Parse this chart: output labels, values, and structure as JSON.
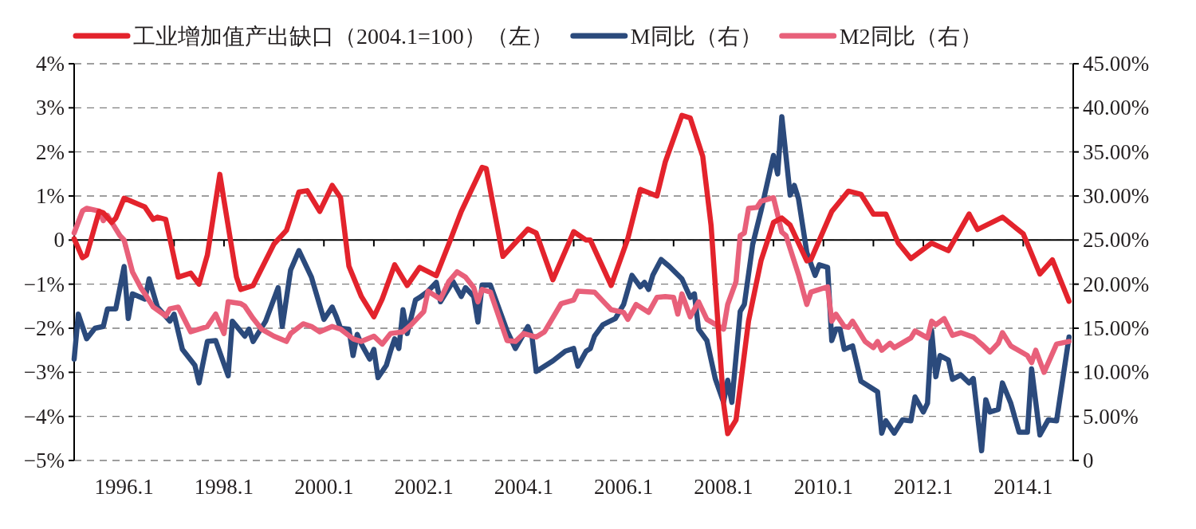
{
  "chart_data": {
    "type": "line",
    "legend": "top",
    "grid": "y",
    "line_style": "solid",
    "xlim": [
      "1995-01",
      "2015-01"
    ],
    "xticks": [
      {
        "value": "1996-01",
        "label": "1996.1"
      },
      {
        "value": "1997-01",
        "label": null
      },
      {
        "value": "1998-01",
        "label": "1998.1"
      },
      {
        "value": "1999-01",
        "label": null
      },
      {
        "value": "2000-01",
        "label": "2000.1"
      },
      {
        "value": "2001-01",
        "label": null
      },
      {
        "value": "2002-01",
        "label": "2002.1"
      },
      {
        "value": "2003-01",
        "label": null
      },
      {
        "value": "2004-01",
        "label": "2004.1"
      },
      {
        "value": "2005-01",
        "label": null
      },
      {
        "value": "2006-01",
        "label": "2006.1"
      },
      {
        "value": "2007-01",
        "label": null
      },
      {
        "value": "2008-01",
        "label": "2008.1"
      },
      {
        "value": "2009-01",
        "label": null
      },
      {
        "value": "2010-01",
        "label": "2010.1"
      },
      {
        "value": "2011-01",
        "label": null
      },
      {
        "value": "2012-01",
        "label": "2012.1"
      },
      {
        "value": "2013-01",
        "label": null
      },
      {
        "value": "2014-01",
        "label": "2014.1"
      }
    ],
    "ylim": [
      -5,
      4
    ],
    "yticks": [
      {
        "value": 4,
        "label": "4%"
      },
      {
        "value": 3,
        "label": "3%"
      },
      {
        "value": 2,
        "label": "2%"
      },
      {
        "value": 1,
        "label": "1%"
      },
      {
        "value": 0,
        "label": "0"
      },
      {
        "value": -1,
        "label": "−1%"
      },
      {
        "value": -2,
        "label": "−2%"
      },
      {
        "value": -3,
        "label": "−3%"
      },
      {
        "value": -4,
        "label": "−4%"
      },
      {
        "value": -5,
        "label": "−5%"
      }
    ],
    "y2lim": [
      0,
      45
    ],
    "y2ticks": [
      {
        "value": 45,
        "label": "45.00%"
      },
      {
        "value": 40,
        "label": "40.00%"
      },
      {
        "value": 35,
        "label": "35.00%"
      },
      {
        "value": 30,
        "label": "30.00%"
      },
      {
        "value": 25,
        "label": "25.00%"
      },
      {
        "value": 20,
        "label": "20.00%"
      },
      {
        "value": 15,
        "label": "15.00%"
      },
      {
        "value": 10,
        "label": "10.00%"
      },
      {
        "value": 5,
        "label": "5.00%"
      },
      {
        "value": 0,
        "label": "0"
      }
    ],
    "ref_lines": [
      {
        "axis": "y",
        "value": 0,
        "color": "#000000",
        "line_style": "solid"
      }
    ],
    "series": [
      {
        "name": "工业增加值产出缺口（2004.1=100）（左）",
        "color": "#e3232c",
        "x": [
          "1995-01",
          "1995-03",
          "1995-04",
          "1995-07",
          "1995-08",
          "1995-10",
          "1995-11",
          "1996-01",
          "1996-06",
          "1996-08",
          "1996-09",
          "1996-11",
          "1997-02",
          "1997-05",
          "1997-07",
          "1997-09",
          "1997-12",
          "1998-01",
          "1998-04",
          "1998-05",
          "1998-08",
          "1999-01",
          "1999-04",
          "1999-07",
          "1999-09",
          "1999-12",
          "2000-03",
          "2000-05",
          "2000-07",
          "2000-10",
          "2001-01",
          "2001-03",
          "2001-06",
          "2001-09",
          "2001-12",
          "2002-04",
          "2002-07",
          "2002-10",
          "2003-03",
          "2003-04",
          "2003-08",
          "2004-02",
          "2004-04",
          "2004-08",
          "2005-01",
          "2005-04",
          "2005-05",
          "2005-10",
          "2006-02",
          "2006-05",
          "2006-09",
          "2006-11",
          "2007-03",
          "2007-05",
          "2007-08",
          "2007-10",
          "2008-01",
          "2008-02",
          "2008-04",
          "2008-07",
          "2008-10",
          "2009-01",
          "2009-03",
          "2009-05",
          "2009-09",
          "2009-10",
          "2010-03",
          "2010-07",
          "2010-10",
          "2011-01",
          "2011-04",
          "2011-07",
          "2011-10",
          "2012-03",
          "2012-07",
          "2012-12",
          "2013-02",
          "2013-08",
          "2014-01",
          "2014-05",
          "2014-08",
          "2014-12"
        ],
        "values": [
          0.03,
          -0.4,
          -0.34,
          0.65,
          0.62,
          0.4,
          0.5,
          0.95,
          0.75,
          0.47,
          0.52,
          0.47,
          -0.84,
          -0.75,
          -1.0,
          -0.34,
          1.49,
          0.9,
          -0.84,
          -1.12,
          -1.03,
          -0.09,
          0.22,
          1.09,
          1.12,
          0.65,
          1.24,
          0.96,
          -0.59,
          -1.28,
          -1.74,
          -1.34,
          -0.56,
          -1.03,
          -0.62,
          -0.81,
          -0.09,
          0.65,
          1.65,
          1.62,
          -0.37,
          0.25,
          0.16,
          -0.9,
          0.19,
          0.0,
          0.0,
          -1.03,
          0.03,
          1.15,
          1.0,
          1.77,
          2.83,
          2.77,
          1.9,
          0.34,
          -3.7,
          -4.39,
          -4.08,
          -1.84,
          -0.47,
          0.4,
          0.5,
          0.34,
          -0.47,
          -0.44,
          0.65,
          1.11,
          1.04,
          0.59,
          0.59,
          -0.07,
          -0.42,
          -0.07,
          -0.24,
          0.59,
          0.24,
          0.52,
          0.14,
          -0.77,
          -0.45,
          -1.39
        ]
      },
      {
        "name": "M同比（右）",
        "color": "#2b4a7c",
        "axis": "y2",
        "x": [
          "1995-01",
          "1995-02",
          "1995-04",
          "1995-06",
          "1995-08",
          "1995-09",
          "1995-11",
          "1996-01",
          "1996-02",
          "1996-03",
          "1996-06",
          "1996-07",
          "1996-09",
          "1996-12",
          "1997-01",
          "1997-03",
          "1997-06",
          "1997-07",
          "1997-09",
          "1997-11",
          "1998-02",
          "1998-03",
          "1998-06",
          "1998-07",
          "1998-08",
          "1998-11",
          "1999-02",
          "1999-03",
          "1999-05",
          "1999-07",
          "1999-10",
          "2000-01",
          "2000-03",
          "2000-04",
          "2000-05",
          "2000-07",
          "2000-08",
          "2000-09",
          "2000-10",
          "2000-12",
          "2001-01",
          "2001-02",
          "2001-04",
          "2001-05",
          "2001-06",
          "2001-07",
          "2001-08",
          "2001-09",
          "2001-11",
          "2001-12",
          "2002-02",
          "2002-04",
          "2002-05",
          "2002-08",
          "2002-10",
          "2002-11",
          "2003-01",
          "2003-02",
          "2003-03",
          "2003-05",
          "2003-09",
          "2003-11",
          "2004-02",
          "2004-03",
          "2004-04",
          "2004-08",
          "2004-11",
          "2005-01",
          "2005-02",
          "2005-04",
          "2005-05",
          "2005-06",
          "2005-08",
          "2005-11",
          "2006-01",
          "2006-03",
          "2006-05",
          "2006-06",
          "2006-07",
          "2006-08",
          "2006-10",
          "2006-12",
          "2007-03",
          "2007-05",
          "2007-06",
          "2007-07",
          "2007-09",
          "2007-11",
          "2008-01",
          "2008-02",
          "2008-03",
          "2008-05",
          "2008-06",
          "2008-08",
          "2008-10",
          "2009-01",
          "2009-02",
          "2009-03",
          "2009-05",
          "2009-06",
          "2009-07",
          "2009-09",
          "2009-11",
          "2009-12",
          "2010-02",
          "2010-03",
          "2010-04",
          "2010-05",
          "2010-06",
          "2010-08",
          "2010-10",
          "2011-02",
          "2011-03",
          "2011-04",
          "2011-06",
          "2011-08",
          "2011-10",
          "2011-11",
          "2012-01",
          "2012-02",
          "2012-03",
          "2012-04",
          "2012-05",
          "2012-07",
          "2012-08",
          "2012-10",
          "2012-12",
          "2013-01",
          "2013-03",
          "2013-04",
          "2013-05",
          "2013-07",
          "2013-08",
          "2013-10",
          "2013-12",
          "2014-02",
          "2014-03",
          "2014-05",
          "2014-07",
          "2014-09",
          "2014-12"
        ],
        "values": [
          11.5,
          16.6,
          13.8,
          15.0,
          15.2,
          17.2,
          17.2,
          22.0,
          16.1,
          18.9,
          18.3,
          20.6,
          17.4,
          15.8,
          16.6,
          12.6,
          10.8,
          8.8,
          13.5,
          13.6,
          9.6,
          15.8,
          14.1,
          14.9,
          13.5,
          15.8,
          19.6,
          15.2,
          21.6,
          23.8,
          20.8,
          16.0,
          17.4,
          16.3,
          15.0,
          14.9,
          11.9,
          14.3,
          13.2,
          11.5,
          12.6,
          9.4,
          10.8,
          12.4,
          13.8,
          12.7,
          17.1,
          14.4,
          18.2,
          18.5,
          19.2,
          20.2,
          18.0,
          20.3,
          18.6,
          19.6,
          18.6,
          15.7,
          19.9,
          19.9,
          14.7,
          12.7,
          15.2,
          14.0,
          10.1,
          11.3,
          12.4,
          12.7,
          10.7,
          12.4,
          12.7,
          14.1,
          15.4,
          16.1,
          17.7,
          21.0,
          19.7,
          20.2,
          19.4,
          21.0,
          22.8,
          22.0,
          20.6,
          18.5,
          18.9,
          14.9,
          13.6,
          9.3,
          6.6,
          9.1,
          6.6,
          16.9,
          17.7,
          24.5,
          28.3,
          34.6,
          32.5,
          39.0,
          30.1,
          31.2,
          29.7,
          23.6,
          21.0,
          22.2,
          21.9,
          13.6,
          14.9,
          14.9,
          12.6,
          13.0,
          9.0,
          7.8,
          3.1,
          4.5,
          3.1,
          4.6,
          4.5,
          7.2,
          5.5,
          6.5,
          14.7,
          9.5,
          11.9,
          11.4,
          9.2,
          9.7,
          8.8,
          9.3,
          1.1,
          6.9,
          5.5,
          5.8,
          8.8,
          6.5,
          3.2,
          3.2,
          10.4,
          2.9,
          4.6,
          4.5,
          14.0
        ]
      },
      {
        "name": "M2同比（右）",
        "color": "#e8607a",
        "axis": "y2",
        "x": [
          "1995-01",
          "1995-03",
          "1995-04",
          "1995-07",
          "1995-08",
          "1995-09",
          "1995-12",
          "1996-01",
          "1996-03",
          "1996-05",
          "1996-06",
          "1996-08",
          "1996-11",
          "1996-12",
          "1997-02",
          "1997-05",
          "1997-07",
          "1997-09",
          "1997-11",
          "1998-01",
          "1998-02",
          "1998-05",
          "1998-06",
          "1998-08",
          "1998-10",
          "1999-01",
          "1999-04",
          "1999-05",
          "1999-08",
          "1999-10",
          "1999-12",
          "2000-03",
          "2000-05",
          "2000-08",
          "2000-10",
          "2001-01",
          "2001-03",
          "2001-05",
          "2001-08",
          "2001-10",
          "2002-01",
          "2002-02",
          "2002-05",
          "2002-07",
          "2002-09",
          "2002-11",
          "2003-01",
          "2003-02",
          "2003-03",
          "2003-05",
          "2003-09",
          "2003-11",
          "2004-01",
          "2004-04",
          "2004-06",
          "2004-10",
          "2005-01",
          "2005-02",
          "2005-06",
          "2005-10",
          "2006-01",
          "2006-02",
          "2006-04",
          "2006-07",
          "2006-09",
          "2006-11",
          "2007-01",
          "2007-02",
          "2007-03",
          "2007-05",
          "2007-07",
          "2007-09",
          "2008-01",
          "2008-02",
          "2008-04",
          "2008-05",
          "2008-06",
          "2008-07",
          "2008-09",
          "2008-10",
          "2009-01",
          "2009-03",
          "2009-04",
          "2009-07",
          "2009-09",
          "2009-10",
          "2010-02",
          "2010-03",
          "2010-04",
          "2010-06",
          "2010-07",
          "2010-08",
          "2010-11",
          "2011-01",
          "2011-02",
          "2011-03",
          "2011-05",
          "2011-06",
          "2011-10",
          "2011-11",
          "2012-02",
          "2012-03",
          "2012-04",
          "2012-06",
          "2012-08",
          "2012-10",
          "2013-01",
          "2013-03",
          "2013-05",
          "2013-07",
          "2013-08",
          "2013-10",
          "2014-02",
          "2014-03",
          "2014-04",
          "2014-06",
          "2014-09",
          "2014-12"
        ],
        "values": [
          25.8,
          28.3,
          28.6,
          28.3,
          27.2,
          27.8,
          25.5,
          25.0,
          21.4,
          19.6,
          18.9,
          17.4,
          16.4,
          17.2,
          17.4,
          14.6,
          14.9,
          15.2,
          16.6,
          14.4,
          18.0,
          17.8,
          17.5,
          16.1,
          14.9,
          14.1,
          13.5,
          14.4,
          15.5,
          15.2,
          14.6,
          15.2,
          14.9,
          13.8,
          13.5,
          14.1,
          13.2,
          14.4,
          14.6,
          15.4,
          16.9,
          19.2,
          18.3,
          20.3,
          21.4,
          20.8,
          19.6,
          18.0,
          19.4,
          19.1,
          13.6,
          13.5,
          14.4,
          14.0,
          14.6,
          17.8,
          18.2,
          19.2,
          19.1,
          17.1,
          16.8,
          16.0,
          17.7,
          16.8,
          18.5,
          18.6,
          18.5,
          16.6,
          18.9,
          16.3,
          18.0,
          16.0,
          14.9,
          17.7,
          20.3,
          25.5,
          25.8,
          28.6,
          28.7,
          29.4,
          29.8,
          25.9,
          25.5,
          21.1,
          17.7,
          19.1,
          19.7,
          15.8,
          16.6,
          15.2,
          15.1,
          15.8,
          13.5,
          12.8,
          13.5,
          12.5,
          13.3,
          12.8,
          13.9,
          14.7,
          13.9,
          15.8,
          15.4,
          16.1,
          14.2,
          14.5,
          14.0,
          13.2,
          12.3,
          13.3,
          14.5,
          13.0,
          11.9,
          11.1,
          12.5,
          10.0,
          13.2,
          13.5
        ]
      }
    ]
  }
}
